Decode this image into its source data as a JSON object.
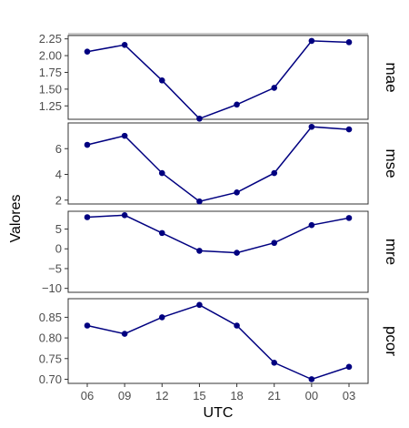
{
  "chart_data": {
    "type": "line",
    "xlabel": "UTC",
    "ylabel": "Valores",
    "categories": [
      "06",
      "09",
      "12",
      "15",
      "18",
      "21",
      "00",
      "03"
    ],
    "colors": {
      "series": "#000080",
      "panel_border": "#333333",
      "tick": "#4d4d4d"
    },
    "grid": false,
    "facets": [
      {
        "name": "mae",
        "values": [
          2.06,
          2.16,
          1.63,
          1.06,
          1.27,
          1.52,
          2.22,
          2.2
        ],
        "ylim": [
          1.05,
          2.3
        ],
        "ticks": [
          1.25,
          1.5,
          1.75,
          2.0,
          2.25
        ],
        "tick_labels": [
          "1.25",
          "1.50",
          "1.75",
          "2.00",
          "2.25"
        ]
      },
      {
        "name": "mse",
        "values": [
          6.3,
          7.0,
          4.1,
          1.9,
          2.6,
          4.1,
          7.7,
          7.5
        ],
        "ylim": [
          1.7,
          8.0
        ],
        "ticks": [
          2,
          4,
          6
        ],
        "tick_labels": [
          "2",
          "4",
          "6"
        ]
      },
      {
        "name": "mre",
        "values": [
          8.0,
          8.5,
          4.0,
          -0.5,
          -1.0,
          1.5,
          6.0,
          7.8
        ],
        "ylim": [
          -11.0,
          9.5
        ],
        "ticks": [
          -10,
          -5,
          0,
          5
        ],
        "tick_labels": [
          "−10",
          "−5",
          "0",
          "5"
        ]
      },
      {
        "name": "pcor",
        "values": [
          0.83,
          0.81,
          0.85,
          0.88,
          0.83,
          0.74,
          0.7,
          0.73
        ],
        "ylim": [
          0.69,
          0.895
        ],
        "ticks": [
          0.7,
          0.75,
          0.8,
          0.85
        ],
        "tick_labels": [
          "0.70",
          "0.75",
          "0.80",
          "0.85"
        ]
      }
    ]
  }
}
